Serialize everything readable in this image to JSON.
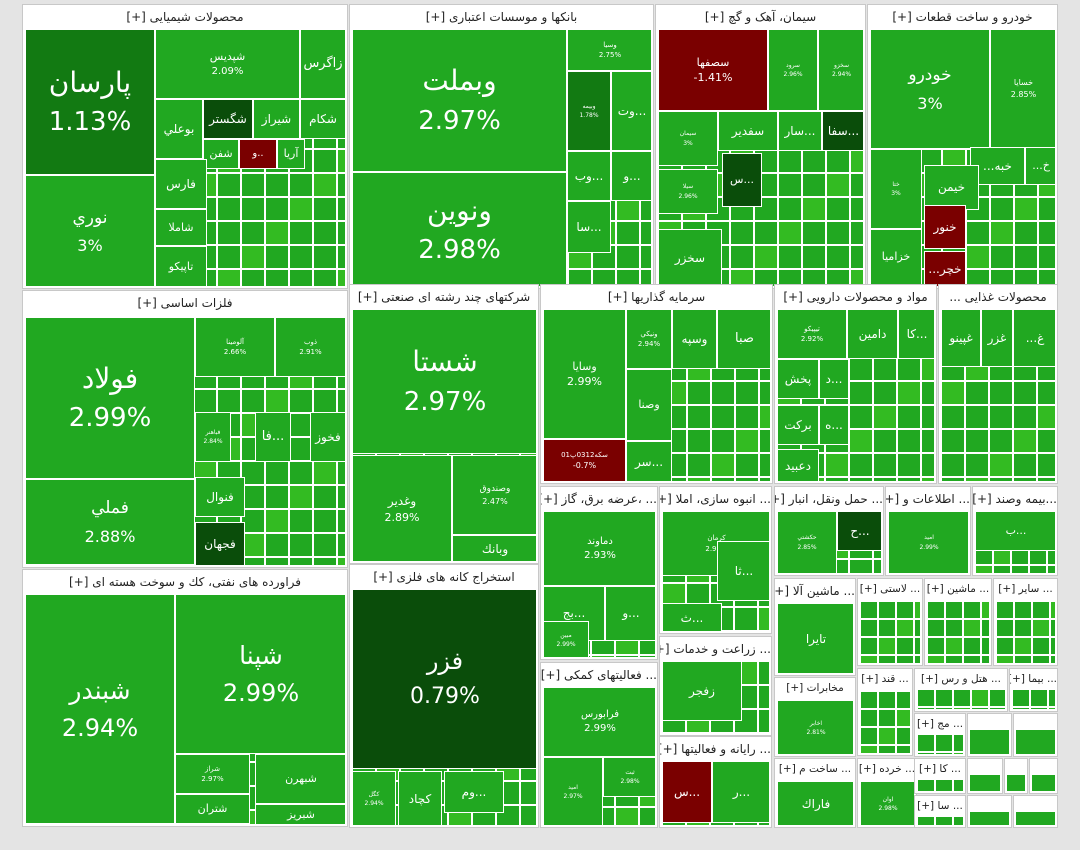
{
  "palette": {
    "pos_strong": "#21a821",
    "pos_light": "#33bb22",
    "pos_mid": "#127a12",
    "pos_dark": "#0a4d0a",
    "neg": "#7a0000",
    "neg_bright": "#c41616"
  },
  "chart_data": {
    "type": "treemap",
    "title": "",
    "sectors": [
      {
        "name": "محصولات شیمیایی [+]",
        "stocks": [
          {
            "name": "پارسان",
            "value": 1.13
          },
          {
            "name": "نوري",
            "value": 3
          },
          {
            "name": "شپديس",
            "value": 2.09
          },
          {
            "name": "زاگرس"
          },
          {
            "name": "بوعلي"
          },
          {
            "name": "شگستر"
          },
          {
            "name": "شيراز"
          },
          {
            "name": "شكام"
          },
          {
            "name": "شفن"
          },
          {
            "name": "..و"
          },
          {
            "name": "آريا"
          },
          {
            "name": "فارس"
          },
          {
            "name": "شاملا"
          },
          {
            "name": "تاپيكو"
          }
        ]
      },
      {
        "name": "بانکها و موسسات اعتباری [+]",
        "stocks": [
          {
            "name": "وبملت",
            "value": 2.97
          },
          {
            "name": "ونوين",
            "value": 2.98
          },
          {
            "name": "وسيا",
            "value": 2.75
          },
          {
            "name": "وبيمه",
            "value": 1.78
          },
          {
            "name": "...وت"
          },
          {
            "name": "...وب"
          },
          {
            "name": "...و"
          },
          {
            "name": "...سا"
          }
        ]
      },
      {
        "name": "سیمان، آهک و گچ [+]",
        "stocks": [
          {
            "name": "سصفها",
            "value": -1.41
          },
          {
            "name": "سرود",
            "value": 2.96
          },
          {
            "name": "سخزو",
            "value": 2.94
          },
          {
            "name": "سيمان",
            "value": 3
          },
          {
            "name": "سفدير"
          },
          {
            "name": "...سار"
          },
          {
            "name": "...سفا"
          },
          {
            "name": "...س"
          },
          {
            "name": "سيلا",
            "value": 2.96
          },
          {
            "name": "سخزر"
          }
        ]
      },
      {
        "name": "خودرو و ساخت قطعات [+]",
        "stocks": [
          {
            "name": "خودرو",
            "value": 3
          },
          {
            "name": "خسايا",
            "value": 2.85
          },
          {
            "name": "خبه..."
          },
          {
            "name": "خ..."
          },
          {
            "name": "خيمن"
          },
          {
            "name": "ختا",
            "value": 3
          },
          {
            "name": "خنور"
          },
          {
            "name": "خزاميا"
          },
          {
            "name": "خچر..."
          }
        ]
      },
      {
        "name": "فلزات اساسی [+]",
        "stocks": [
          {
            "name": "فولاد",
            "value": 2.99
          },
          {
            "name": "فملي",
            "value": 2.88
          },
          {
            "name": "آلومينا",
            "value": 2.66
          },
          {
            "name": "ذوب",
            "value": 2.91
          },
          {
            "name": "فباهنر",
            "value": 2.84
          },
          {
            "name": "...فا"
          },
          {
            "name": "فخوز"
          },
          {
            "name": "فنوال"
          },
          {
            "name": "فجهان"
          }
        ]
      },
      {
        "name": "شرکتهای چند رشته ای صنعتی [+]",
        "stocks": [
          {
            "name": "شستا",
            "value": 2.97
          },
          {
            "name": "وغدير",
            "value": 2.89
          },
          {
            "name": "وصندوق",
            "value": 2.47
          },
          {
            "name": "وبانك"
          }
        ]
      },
      {
        "name": "سرمایه گذاریها [+]",
        "stocks": [
          {
            "name": "وسايا",
            "value": 2.99
          },
          {
            "name": "ونيكي",
            "value": 2.94
          },
          {
            "name": "وسپه"
          },
          {
            "name": "صبا"
          },
          {
            "name": "وصنا"
          },
          {
            "name": "...سر"
          },
          {
            "name": "سكه0312پ01",
            "value": -0.7
          }
        ]
      },
      {
        "name": "مواد و محصولات دارویی [+]",
        "stocks": [
          {
            "name": "تيپيكو",
            "value": 2.92
          },
          {
            "name": "دامين"
          },
          {
            "name": "...كا"
          },
          {
            "name": "پخش"
          },
          {
            "name": "...د"
          },
          {
            "name": "بركت"
          },
          {
            "name": "...ه"
          },
          {
            "name": "دعبيد"
          }
        ]
      },
      {
        "name": "محصولات غذایی ...",
        "stocks": [
          {
            "name": "غپينو"
          },
          {
            "name": "غزر"
          },
          {
            "name": "غ..."
          }
        ]
      },
      {
        "name": "استخراج کانه های فلزی [+]",
        "stocks": [
          {
            "name": "فزر",
            "value": 0.79
          },
          {
            "name": "كگل",
            "value": 2.94
          },
          {
            "name": "كچاد"
          },
          {
            "name": "...وم"
          }
        ]
      },
      {
        "name": "فراورده های نفتی، كك و سوخت هسته ای [+]",
        "stocks": [
          {
            "name": "شبندر",
            "value": 2.94
          },
          {
            "name": "شپنا",
            "value": 2.99
          },
          {
            "name": "شراز",
            "value": 2.97
          },
          {
            "name": "شبهرن"
          },
          {
            "name": "شتران"
          },
          {
            "name": "شبريز"
          }
        ]
      },
      {
        "name": "... ،عرضه برق، گاز [+]",
        "stocks": [
          {
            "name": "دماوند",
            "value": 2.93
          },
          {
            "name": "...بج"
          },
          {
            "name": "...و"
          },
          {
            "name": "مبين",
            "value": 2.99
          }
        ]
      },
      {
        "name": "... انبوه سازی، املا [+]",
        "stocks": [
          {
            "name": "كرمان",
            "value": 2.95
          },
          {
            "name": "...ثا"
          },
          {
            "name": "...ث"
          }
        ]
      },
      {
        "name": "... حمل ونقل، انبار [+]",
        "stocks": [
          {
            "name": "حكشتي",
            "value": 2.85
          },
          {
            "name": "...ح"
          }
        ]
      },
      {
        "name": "... اطلاعات و [+]",
        "stocks": [
          {
            "name": "اميد",
            "value": 2.99
          }
        ]
      },
      {
        "name": "...بیمه وصند [+]",
        "stocks": [
          {
            "name": "...ب"
          }
        ]
      },
      {
        "name": "... فعالیتهای کمکی [+]",
        "stocks": [
          {
            "name": "فرابورس",
            "value": 2.99
          },
          {
            "name": "اميد",
            "value": 2.97
          },
          {
            "name": "ثبت",
            "value": 2.98
          }
        ]
      },
      {
        "name": "... زراعت و خدمات [+]",
        "stocks": [
          {
            "name": "زفجر"
          }
        ]
      },
      {
        "name": "... رایانه و فعالیتها [+]",
        "stocks": [
          {
            "name": "...س"
          },
          {
            "name": "...ر"
          }
        ]
      },
      {
        "name": "... ماشین آلا [+]",
        "stocks": [
          {
            "name": "تايرا"
          }
        ]
      },
      {
        "name": "... لاستی [+]",
        "stocks": []
      },
      {
        "name": "... ماشین [+]",
        "stocks": []
      },
      {
        "name": "... سایر [+]",
        "stocks": []
      },
      {
        "name": "مخابرات [+]",
        "stocks": [
          {
            "name": "اخابر",
            "value": 2.81
          }
        ]
      },
      {
        "name": "... ساخت م [+]",
        "stocks": [
          {
            "name": "فاراك"
          }
        ]
      },
      {
        "name": "... خرده [+]",
        "stocks": [
          {
            "name": "اوان",
            "value": 2.98
          }
        ]
      },
      {
        "name": "... قند [+]",
        "stocks": []
      },
      {
        "name": "... هتل و رس [+]",
        "stocks": []
      },
      {
        "name": "... بیما [+]",
        "stocks": []
      },
      {
        "name": "... مج [+]",
        "stocks": []
      },
      {
        "name": "... كا [+]",
        "stocks": []
      },
      {
        "name": "... سا [+]",
        "stocks": []
      }
    ]
  }
}
